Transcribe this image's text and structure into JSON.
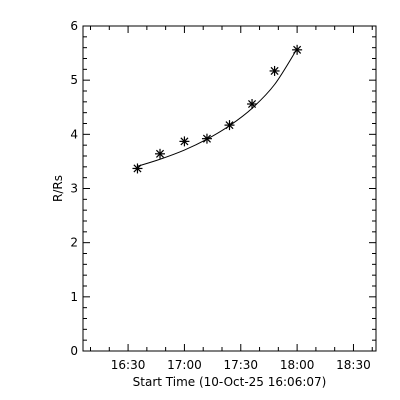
{
  "chart_data": {
    "type": "scatter",
    "title": "",
    "xlabel": "Start Time (10-Oct-25 16:06:07)",
    "ylabel": "R/Rs",
    "x_tick_labels": [
      "16:30",
      "17:00",
      "17:30",
      "18:00",
      "18:30"
    ],
    "x_tick_values": [
      "16:30",
      "17:00",
      "17:30",
      "18:00",
      "18:30"
    ],
    "xlim": [
      "16:06",
      "18:42"
    ],
    "y_tick_labels": [
      "0",
      "1",
      "2",
      "3",
      "4",
      "5",
      "6"
    ],
    "ylim": [
      0,
      6
    ],
    "grid": false,
    "marker": "asterisk",
    "points": [
      {
        "x": "16:35",
        "y": 3.37
      },
      {
        "x": "16:47",
        "y": 3.64
      },
      {
        "x": "17:00",
        "y": 3.87
      },
      {
        "x": "17:12",
        "y": 3.92
      },
      {
        "x": "17:24",
        "y": 4.17
      },
      {
        "x": "17:36",
        "y": 4.56
      },
      {
        "x": "17:48",
        "y": 5.17
      },
      {
        "x": "18:00",
        "y": 5.56
      }
    ],
    "fit_line": [
      {
        "x": "16:35",
        "y": 3.41
      },
      {
        "x": "16:47",
        "y": 3.54
      },
      {
        "x": "17:00",
        "y": 3.71
      },
      {
        "x": "17:12",
        "y": 3.91
      },
      {
        "x": "17:24",
        "y": 4.16
      },
      {
        "x": "17:36",
        "y": 4.48
      },
      {
        "x": "17:48",
        "y": 4.92
      },
      {
        "x": "18:00",
        "y": 5.58
      }
    ]
  }
}
